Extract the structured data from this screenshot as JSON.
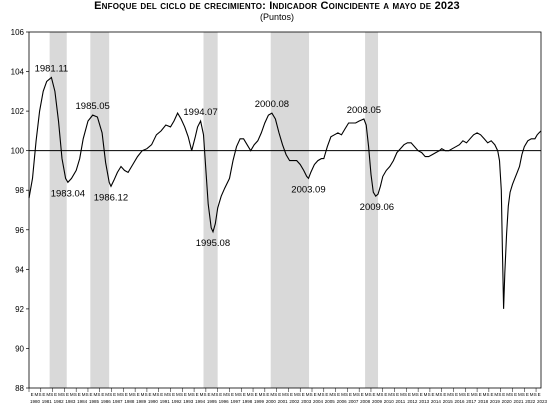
{
  "header": {
    "title": "Enfoque del ciclo de crecimiento: Indicador Coincidente a mayo de 2023",
    "subtitle": "(Puntos)"
  },
  "chart_data": {
    "type": "line",
    "title": "Enfoque del ciclo de crecimiento: Indicador Coincidente a mayo de 2023",
    "subtitle": "(Puntos)",
    "xlabel": "",
    "ylabel": "",
    "ylim": [
      88,
      106
    ],
    "yticks": [
      88,
      90,
      92,
      94,
      96,
      98,
      100,
      102,
      104,
      106
    ],
    "xlim": [
      1980.0,
      2023.42
    ],
    "reference_line": 100,
    "grid": false,
    "legend": "none",
    "colors": {
      "line": "#000000",
      "recession": "#d9d9d9",
      "reference": "#000000"
    },
    "x_tick_month_labels": [
      "E",
      "M",
      "S"
    ],
    "years": [
      1980,
      1981,
      1982,
      1983,
      1984,
      1985,
      1986,
      1987,
      1988,
      1989,
      1990,
      1991,
      1992,
      1993,
      1994,
      1995,
      1996,
      1997,
      1998,
      1999,
      2000,
      2001,
      2002,
      2003,
      2004,
      2005,
      2006,
      2007,
      2008,
      2009,
      2010,
      2011,
      2012,
      2013,
      2014,
      2015,
      2016,
      2017,
      2018,
      2019,
      2020,
      2021,
      2022,
      2023
    ],
    "recession_periods": [
      [
        1981.75,
        1983.2
      ],
      [
        1985.2,
        1986.8
      ],
      [
        1994.8,
        1996.0
      ],
      [
        2000.5,
        2003.75
      ],
      [
        2008.5,
        2009.6
      ]
    ],
    "annotations": [
      {
        "label": "1981.11",
        "x": 1981.9,
        "y": 103.7,
        "pos": "above"
      },
      {
        "label": "1983.04",
        "x": 1983.3,
        "y": 98.4,
        "pos": "below"
      },
      {
        "label": "1985.05",
        "x": 1985.4,
        "y": 101.8,
        "pos": "above"
      },
      {
        "label": "1986.12",
        "x": 1986.95,
        "y": 98.2,
        "pos": "below"
      },
      {
        "label": "1994.07",
        "x": 1994.55,
        "y": 101.5,
        "pos": "above"
      },
      {
        "label": "1995.08",
        "x": 1995.6,
        "y": 95.9,
        "pos": "below"
      },
      {
        "label": "2000.08",
        "x": 2000.6,
        "y": 101.9,
        "pos": "above"
      },
      {
        "label": "2003.09",
        "x": 2003.7,
        "y": 98.6,
        "pos": "below"
      },
      {
        "label": "2008.05",
        "x": 2008.4,
        "y": 101.6,
        "pos": "above"
      },
      {
        "label": "2009.06",
        "x": 2009.5,
        "y": 97.7,
        "pos": "below"
      }
    ],
    "series": [
      {
        "values": [
          [
            1980.0,
            97.6
          ],
          [
            1980.3,
            98.6
          ],
          [
            1980.6,
            100.5
          ],
          [
            1980.9,
            102.0
          ],
          [
            1981.2,
            103.0
          ],
          [
            1981.5,
            103.5
          ],
          [
            1981.9,
            103.7
          ],
          [
            1982.2,
            103.0
          ],
          [
            1982.5,
            101.5
          ],
          [
            1982.8,
            99.6
          ],
          [
            1983.1,
            98.6
          ],
          [
            1983.3,
            98.4
          ],
          [
            1983.6,
            98.6
          ],
          [
            1984.0,
            99.0
          ],
          [
            1984.3,
            99.6
          ],
          [
            1984.6,
            100.6
          ],
          [
            1985.0,
            101.5
          ],
          [
            1985.4,
            101.8
          ],
          [
            1985.8,
            101.7
          ],
          [
            1986.2,
            100.9
          ],
          [
            1986.5,
            99.4
          ],
          [
            1986.8,
            98.4
          ],
          [
            1986.95,
            98.2
          ],
          [
            1987.2,
            98.5
          ],
          [
            1987.5,
            98.9
          ],
          [
            1987.8,
            99.2
          ],
          [
            1988.1,
            99.0
          ],
          [
            1988.4,
            98.9
          ],
          [
            1988.8,
            99.3
          ],
          [
            1989.2,
            99.7
          ],
          [
            1989.6,
            100.0
          ],
          [
            1990.0,
            100.1
          ],
          [
            1990.4,
            100.3
          ],
          [
            1990.8,
            100.8
          ],
          [
            1991.2,
            101.0
          ],
          [
            1991.6,
            101.3
          ],
          [
            1992.0,
            101.2
          ],
          [
            1992.3,
            101.5
          ],
          [
            1992.6,
            101.9
          ],
          [
            1992.9,
            101.6
          ],
          [
            1993.2,
            101.2
          ],
          [
            1993.5,
            100.7
          ],
          [
            1993.8,
            100.0
          ],
          [
            1994.1,
            100.7
          ],
          [
            1994.3,
            101.2
          ],
          [
            1994.55,
            101.5
          ],
          [
            1994.8,
            100.8
          ],
          [
            1995.0,
            99.0
          ],
          [
            1995.2,
            97.3
          ],
          [
            1995.45,
            96.1
          ],
          [
            1995.6,
            95.9
          ],
          [
            1995.8,
            96.3
          ],
          [
            1996.0,
            97.1
          ],
          [
            1996.3,
            97.7
          ],
          [
            1996.6,
            98.1
          ],
          [
            1997.0,
            98.6
          ],
          [
            1997.3,
            99.5
          ],
          [
            1997.6,
            100.2
          ],
          [
            1997.9,
            100.6
          ],
          [
            1998.2,
            100.6
          ],
          [
            1998.5,
            100.3
          ],
          [
            1998.8,
            100.0
          ],
          [
            1999.1,
            100.3
          ],
          [
            1999.4,
            100.5
          ],
          [
            1999.7,
            100.9
          ],
          [
            2000.0,
            101.4
          ],
          [
            2000.3,
            101.8
          ],
          [
            2000.6,
            101.9
          ],
          [
            2000.9,
            101.6
          ],
          [
            2001.2,
            100.9
          ],
          [
            2001.5,
            100.3
          ],
          [
            2001.8,
            99.8
          ],
          [
            2002.1,
            99.5
          ],
          [
            2002.4,
            99.5
          ],
          [
            2002.7,
            99.5
          ],
          [
            2003.0,
            99.3
          ],
          [
            2003.3,
            99.0
          ],
          [
            2003.55,
            98.7
          ],
          [
            2003.7,
            98.6
          ],
          [
            2003.9,
            98.9
          ],
          [
            2004.2,
            99.3
          ],
          [
            2004.5,
            99.5
          ],
          [
            2004.8,
            99.6
          ],
          [
            2005.0,
            99.6
          ],
          [
            2005.3,
            100.2
          ],
          [
            2005.6,
            100.7
          ],
          [
            2005.9,
            100.8
          ],
          [
            2006.2,
            100.9
          ],
          [
            2006.5,
            100.8
          ],
          [
            2006.8,
            101.1
          ],
          [
            2007.1,
            101.4
          ],
          [
            2007.4,
            101.4
          ],
          [
            2007.7,
            101.4
          ],
          [
            2008.0,
            101.5
          ],
          [
            2008.4,
            101.6
          ],
          [
            2008.6,
            101.3
          ],
          [
            2008.8,
            100.2
          ],
          [
            2009.0,
            98.8
          ],
          [
            2009.2,
            97.9
          ],
          [
            2009.4,
            97.7
          ],
          [
            2009.6,
            97.8
          ],
          [
            2009.8,
            98.2
          ],
          [
            2010.0,
            98.7
          ],
          [
            2010.3,
            99.0
          ],
          [
            2010.6,
            99.2
          ],
          [
            2010.9,
            99.5
          ],
          [
            2011.2,
            99.9
          ],
          [
            2011.5,
            100.1
          ],
          [
            2011.8,
            100.3
          ],
          [
            2012.1,
            100.4
          ],
          [
            2012.4,
            100.4
          ],
          [
            2012.7,
            100.2
          ],
          [
            2013.0,
            100.0
          ],
          [
            2013.3,
            99.9
          ],
          [
            2013.6,
            99.7
          ],
          [
            2013.9,
            99.7
          ],
          [
            2014.2,
            99.8
          ],
          [
            2014.5,
            99.9
          ],
          [
            2014.8,
            100.0
          ],
          [
            2015.0,
            100.1
          ],
          [
            2015.3,
            100.0
          ],
          [
            2015.6,
            100.0
          ],
          [
            2015.9,
            100.1
          ],
          [
            2016.2,
            100.2
          ],
          [
            2016.5,
            100.3
          ],
          [
            2016.8,
            100.5
          ],
          [
            2017.1,
            100.4
          ],
          [
            2017.4,
            100.6
          ],
          [
            2017.7,
            100.8
          ],
          [
            2018.0,
            100.9
          ],
          [
            2018.3,
            100.8
          ],
          [
            2018.6,
            100.6
          ],
          [
            2018.9,
            100.4
          ],
          [
            2019.2,
            100.5
          ],
          [
            2019.5,
            100.3
          ],
          [
            2019.75,
            100.0
          ],
          [
            2019.9,
            99.5
          ],
          [
            2020.05,
            98.0
          ],
          [
            2020.15,
            95.0
          ],
          [
            2020.25,
            92.0
          ],
          [
            2020.35,
            93.8
          ],
          [
            2020.5,
            95.8
          ],
          [
            2020.65,
            97.2
          ],
          [
            2020.8,
            97.9
          ],
          [
            2021.0,
            98.3
          ],
          [
            2021.2,
            98.6
          ],
          [
            2021.4,
            98.9
          ],
          [
            2021.6,
            99.2
          ],
          [
            2021.8,
            99.8
          ],
          [
            2022.0,
            100.2
          ],
          [
            2022.3,
            100.5
          ],
          [
            2022.6,
            100.6
          ],
          [
            2022.9,
            100.6
          ],
          [
            2023.1,
            100.8
          ],
          [
            2023.25,
            100.9
          ],
          [
            2023.42,
            101.0
          ]
        ]
      }
    ]
  }
}
